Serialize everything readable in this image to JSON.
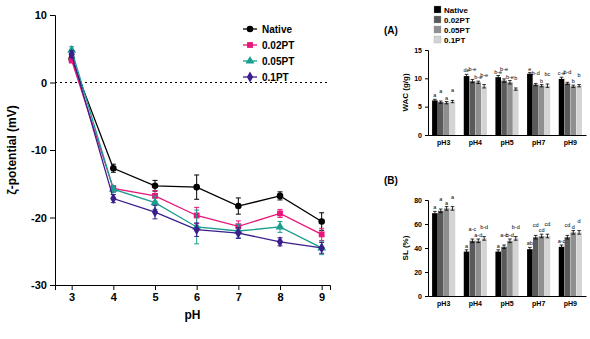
{
  "chart_data": [
    {
      "type": "line",
      "x_label": "pH",
      "y_label": "ζ-potential (mV)",
      "x": [
        3,
        4,
        5,
        6,
        7,
        8,
        9
      ],
      "xlim": [
        2.6,
        9.2
      ],
      "xticks": [
        3,
        4,
        5,
        6,
        7,
        8,
        9
      ],
      "ylim": [
        -30,
        10
      ],
      "yticks": [
        -30,
        -20,
        -10,
        0,
        10
      ],
      "reference_line": 0,
      "legend": "top-right",
      "series": [
        {
          "name": "Native",
          "color": "#000000",
          "marker": "circle",
          "values": [
            3.5,
            -12.7,
            -15.3,
            -15.5,
            -18.3,
            -16.8,
            -20.6
          ],
          "errors": [
            0.5,
            0.6,
            0.8,
            1.8,
            1.2,
            0.6,
            1.3
          ]
        },
        {
          "name": "0.02PT",
          "color": "#e8157a",
          "marker": "square",
          "values": [
            3.3,
            -15.7,
            -16.8,
            -19.7,
            -21.3,
            -19.4,
            -22.5
          ],
          "errors": [
            0.4,
            0.4,
            0.8,
            1.2,
            0.8,
            0.6,
            0.9
          ]
        },
        {
          "name": "0.05PT",
          "color": "#1a9e8f",
          "marker": "triangle",
          "values": [
            4.8,
            -15.8,
            -17.8,
            -21.4,
            -22.0,
            -21.4,
            -24.5
          ],
          "errors": [
            0.5,
            0.5,
            1.0,
            2.5,
            1.0,
            0.8,
            1.0
          ]
        },
        {
          "name": "0.1PT",
          "color": "#3b1e8c",
          "marker": "diamond",
          "values": [
            4.2,
            -17.2,
            -19.2,
            -21.8,
            -22.3,
            -23.6,
            -24.5
          ],
          "errors": [
            0.5,
            0.6,
            1.0,
            1.0,
            0.8,
            0.6,
            0.8
          ]
        }
      ]
    },
    {
      "type": "bar",
      "title": "(A)",
      "y_label": "WAC (g/g)",
      "categories": [
        "pH3",
        "pH4",
        "pH5",
        "pH7",
        "pH9"
      ],
      "ylim": [
        0,
        15
      ],
      "yticks": [
        0,
        5,
        10,
        15
      ],
      "legend": "top-left",
      "series": [
        {
          "name": "Native",
          "color": "#000000",
          "values": [
            6.1,
            10.4,
            10.2,
            10.8,
            9.9
          ],
          "errors": [
            0.2,
            0.3,
            0.3,
            0.2,
            0.3
          ],
          "annotations": [
            "a",
            "de",
            "b-e",
            "e",
            "c-e"
          ]
        },
        {
          "name": "0.02PT",
          "color": "#5a5a5a",
          "values": [
            5.8,
            9.5,
            9.6,
            8.9,
            9.1
          ],
          "errors": [
            0.2,
            0.3,
            0.3,
            0.2,
            0.2
          ],
          "annotations": [
            "a",
            "b-e",
            "b-e",
            "b-d",
            "b-d"
          ]
        },
        {
          "name": "0.05PT",
          "color": "#8f8f8f",
          "values": [
            5.7,
            9.3,
            9.3,
            8.7,
            8.6
          ],
          "errors": [
            0.2,
            0.2,
            0.3,
            0.2,
            0.2
          ],
          "annotations": [
            "a",
            "b-e",
            "b-e",
            "b",
            "b"
          ]
        },
        {
          "name": "0.1PT",
          "color": "#d4d4d4",
          "values": [
            5.9,
            8.6,
            8.1,
            8.7,
            8.7
          ],
          "errors": [
            0.2,
            0.3,
            0.2,
            0.3,
            0.2
          ],
          "annotations": [
            "a",
            "b-e",
            "b",
            "bc",
            "b"
          ]
        }
      ]
    },
    {
      "type": "bar",
      "title": "(B)",
      "y_label": "SL (%)",
      "categories": [
        "pH3",
        "pH4",
        "pH5",
        "pH7",
        "pH9"
      ],
      "ylim": [
        0,
        80
      ],
      "yticks": [
        0,
        20,
        40,
        60,
        80
      ],
      "series": [
        {
          "color": "#000000",
          "values": [
            69,
            37,
            37,
            39,
            41
          ],
          "errors": [
            1.5,
            1.5,
            1.5,
            1.5,
            1.5
          ],
          "annotations": [
            "a",
            "a",
            "a",
            "ab",
            "a-c"
          ]
        },
        {
          "color": "#5a5a5a",
          "values": [
            71,
            46,
            41,
            49,
            49
          ],
          "errors": [
            1.5,
            1.5,
            1.5,
            1.5,
            1.5
          ],
          "annotations": [
            "a",
            "a-c",
            "a-c",
            "cd",
            "cd"
          ]
        },
        {
          "color": "#8f8f8f",
          "values": [
            73,
            46,
            46,
            50,
            53
          ],
          "errors": [
            1.5,
            1.5,
            1.5,
            1.5,
            1.5
          ],
          "annotations": [
            "a",
            "a-d",
            "b-d",
            "cd",
            "d"
          ]
        },
        {
          "color": "#d4d4d4",
          "values": [
            73,
            48,
            48,
            50,
            53
          ],
          "errors": [
            1.5,
            1.5,
            1.5,
            1.5,
            1.5
          ],
          "annotations": [
            "a",
            "b-d",
            "b-d",
            "cd",
            "d"
          ]
        }
      ]
    }
  ]
}
